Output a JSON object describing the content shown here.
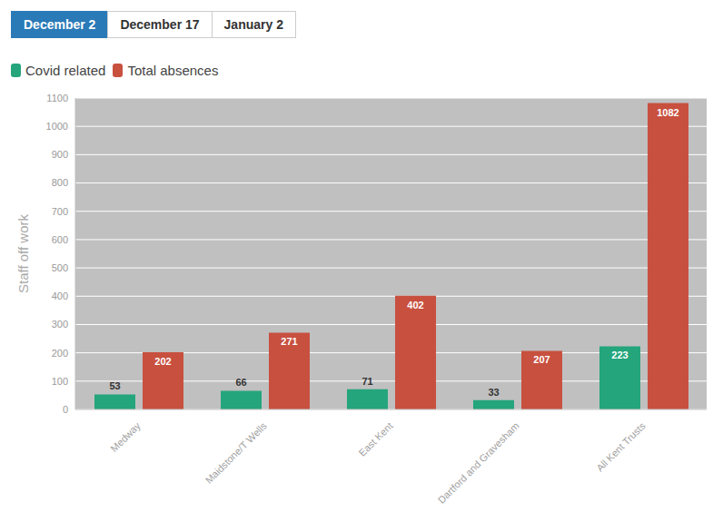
{
  "tabs": {
    "items": [
      "December 2",
      "December 17",
      "January 2"
    ],
    "selected": "December 2"
  },
  "chart_data": {
    "type": "bar",
    "y_label": "Staff off work",
    "categories": [
      "Medway",
      "Maidstone/T Wells",
      "East Kent",
      "Dartford and Gravesham",
      "All Kent Trusts"
    ],
    "series": [
      {
        "name": "Covid related",
        "color": "#24a57c",
        "values": [
          53,
          66,
          71,
          33,
          223
        ]
      },
      {
        "name": "Total absences",
        "color": "#c8503f",
        "values": [
          202,
          271,
          402,
          207,
          1082
        ]
      }
    ],
    "ylim": [
      0,
      1100
    ],
    "yticks": [
      0,
      100,
      200,
      300,
      400,
      500,
      600,
      700,
      800,
      900,
      1000,
      1100
    ],
    "grid": true,
    "legend": "top-left",
    "data_labels": true
  }
}
